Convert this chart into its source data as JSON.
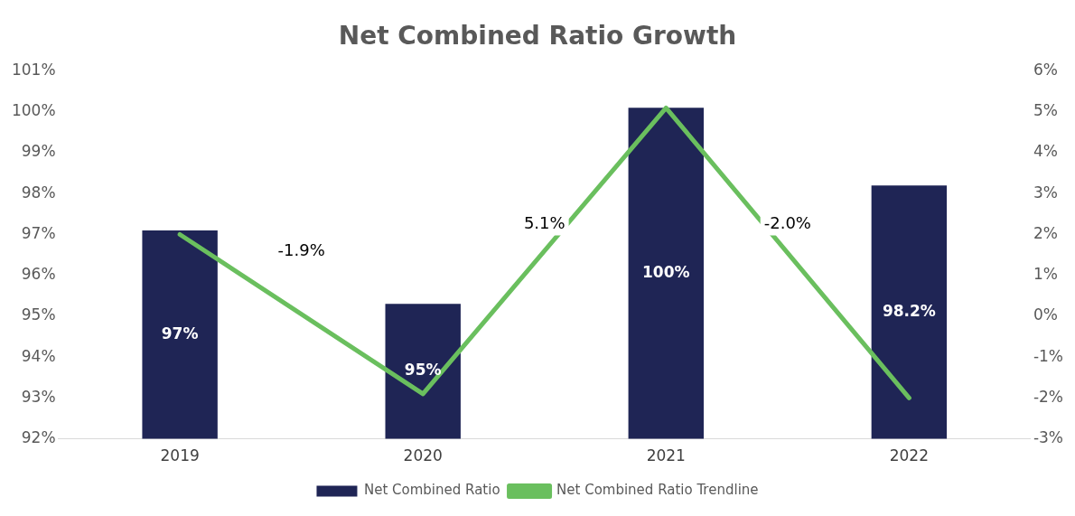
{
  "chart_data": {
    "type": "bar",
    "title": "Net Combined Ratio Growth",
    "categories": [
      "2019",
      "2020",
      "2021",
      "2022"
    ],
    "series": [
      {
        "name": "Net Combined Ratio",
        "color": "#1f2555",
        "values": [
          97.1,
          95.3,
          100.1,
          98.2
        ],
        "value_labels": [
          "97%",
          "95%",
          "100%",
          "98.2%"
        ]
      },
      {
        "name": "Net Combined Ratio Trendline",
        "type": "line",
        "axis": "y2",
        "color": "#6abf5e",
        "values": [
          2.0,
          -1.9,
          5.1,
          -2.0
        ]
      }
    ],
    "ylim": [
      92,
      101
    ],
    "yticks": [
      {
        "value": 92,
        "label": "92%"
      },
      {
        "value": 93,
        "label": "93%"
      },
      {
        "value": 94,
        "label": "94%"
      },
      {
        "value": 95,
        "label": "95%"
      },
      {
        "value": 96,
        "label": "96%"
      },
      {
        "value": 97,
        "label": "97%"
      },
      {
        "value": 98,
        "label": "98%"
      },
      {
        "value": 99,
        "label": "99%"
      },
      {
        "value": 100,
        "label": "100%"
      },
      {
        "value": 101,
        "label": "101%"
      }
    ],
    "y2lim": [
      -3,
      6
    ],
    "y2ticks": [
      {
        "value": -3,
        "label": "-3%"
      },
      {
        "value": -2,
        "label": "-2%"
      },
      {
        "value": -1,
        "label": "-1%"
      },
      {
        "value": 0,
        "label": "0%"
      },
      {
        "value": 1,
        "label": "1%"
      },
      {
        "value": 2,
        "label": "2%"
      },
      {
        "value": 3,
        "label": "3%"
      },
      {
        "value": 4,
        "label": "4%"
      },
      {
        "value": 5,
        "label": "5%"
      },
      {
        "value": 6,
        "label": "6%"
      }
    ],
    "annotations": [
      "-1.9%",
      "5.1%",
      "-2.0%"
    ],
    "marker": "none",
    "line_style": "solid",
    "grid": false,
    "legend": "bottom"
  }
}
